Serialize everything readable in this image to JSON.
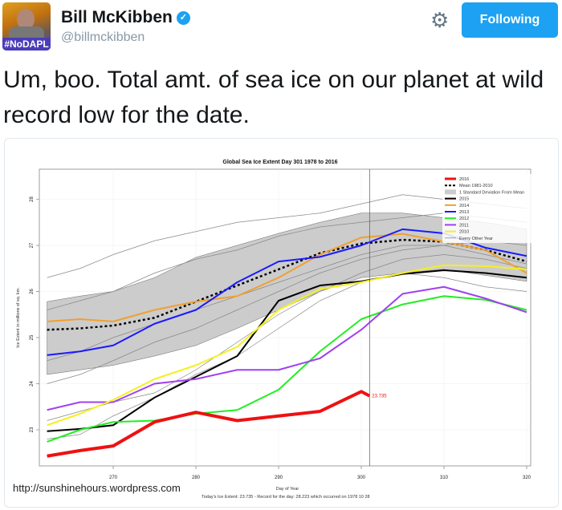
{
  "header": {
    "name": "Bill McKibben",
    "handle": "@billmckibben",
    "avatar_tag": "#NoDAPL",
    "verified_icon": "check",
    "follow_label": "Following",
    "accent": "#1da1f2"
  },
  "tweet": {
    "text": "Um, boo. Total amt. of sea ice on our planet at wild record low for the date."
  },
  "card": {
    "source_url": "http://sunshinehours.wordpress.com"
  },
  "chart_data": {
    "type": "line",
    "title": "Global Sea Ice Extent Day 301 1978 to 2016",
    "xlabel": "Day of Year",
    "ylabel": "Ice Extent in millions of sq. km.",
    "note": "Today's Ice Extent: 23.735  - Record for the day: 28.223 which occurred on 1978 10 28",
    "xlim": [
      262,
      321
    ],
    "ylim": [
      22.2,
      28.6
    ],
    "xticks": [
      270,
      280,
      290,
      300,
      310,
      320
    ],
    "yticks": [
      23,
      24,
      25,
      26,
      27,
      28
    ],
    "grid": true,
    "marker_day": 301,
    "legend_position": "top-right",
    "x": [
      262,
      266,
      270,
      275,
      280,
      285,
      290,
      295,
      300,
      305,
      310,
      315,
      320
    ],
    "band": {
      "name": "1 Standard Deviation From Mean",
      "upper": [
        25.78,
        25.9,
        26.0,
        26.3,
        26.74,
        27.0,
        27.26,
        27.5,
        27.7,
        27.7,
        27.6,
        27.5,
        27.35
      ],
      "lower": [
        24.2,
        24.3,
        24.4,
        24.6,
        24.83,
        25.2,
        25.6,
        26.0,
        26.3,
        26.4,
        26.48,
        26.35,
        26.22
      ],
      "color": "#cccccc"
    },
    "other_years": {
      "name": "Every Other Year",
      "color": "#888888",
      "series": [
        [
          26.3,
          26.5,
          26.8,
          27.1,
          27.3,
          27.5,
          27.6,
          27.7,
          27.9,
          28.1,
          28.0,
          27.9,
          27.8
        ],
        [
          25.6,
          25.8,
          26.0,
          26.4,
          26.7,
          26.9,
          27.2,
          27.4,
          27.5,
          27.6,
          27.7,
          27.6,
          27.5
        ],
        [
          24.5,
          24.7,
          25.0,
          25.3,
          25.6,
          25.9,
          26.2,
          26.5,
          26.8,
          27.0,
          27.0,
          26.8,
          26.6
        ],
        [
          23.2,
          23.4,
          23.6,
          23.8,
          24.3,
          24.9,
          25.5,
          26.0,
          26.4,
          26.7,
          26.8,
          26.7,
          26.5
        ],
        [
          22.8,
          22.9,
          23.3,
          23.7,
          24.2,
          24.6,
          25.2,
          25.8,
          26.2,
          26.4,
          26.3,
          26.1,
          26.0
        ],
        [
          24.0,
          24.2,
          24.5,
          24.9,
          25.2,
          25.6,
          26.0,
          26.4,
          26.7,
          26.9,
          27.0,
          27.1,
          27.0
        ]
      ]
    },
    "series": [
      {
        "name": "Mean 1981-2010",
        "color": "#000000",
        "dashed": true,
        "values": [
          25.17,
          25.2,
          25.26,
          25.43,
          25.78,
          26.13,
          26.48,
          26.83,
          27.04,
          27.12,
          27.08,
          26.9,
          26.65
        ]
      },
      {
        "name": "2015",
        "color": "#000000",
        "values": [
          22.97,
          23.02,
          23.1,
          23.7,
          24.15,
          24.6,
          25.8,
          26.13,
          26.22,
          26.38,
          26.46,
          26.4,
          26.3
        ]
      },
      {
        "name": "2014",
        "color": "#f0a030",
        "values": [
          25.35,
          25.4,
          25.35,
          25.6,
          25.78,
          25.9,
          26.3,
          26.8,
          27.17,
          27.25,
          27.08,
          26.9,
          26.4
        ]
      },
      {
        "name": "2013",
        "color": "#1a1aff",
        "values": [
          24.62,
          24.7,
          24.83,
          25.3,
          25.6,
          26.2,
          26.65,
          26.75,
          27.0,
          27.35,
          27.26,
          26.95,
          26.77
        ]
      },
      {
        "name": "2012",
        "color": "#22ee22",
        "values": [
          22.74,
          23.0,
          23.17,
          23.2,
          23.35,
          23.43,
          23.87,
          24.7,
          25.4,
          25.72,
          25.9,
          25.82,
          25.6
        ]
      },
      {
        "name": "2011",
        "color": "#a040f0",
        "values": [
          23.43,
          23.6,
          23.6,
          24.0,
          24.1,
          24.3,
          24.3,
          24.55,
          25.17,
          25.95,
          26.1,
          25.85,
          25.55
        ]
      },
      {
        "name": "2010",
        "color": "#f5f020",
        "values": [
          23.1,
          23.35,
          23.65,
          24.1,
          24.4,
          24.8,
          25.6,
          26.05,
          26.2,
          26.4,
          26.57,
          26.55,
          26.48
        ]
      },
      {
        "name": "2016",
        "color": "#ee1111",
        "thick": true,
        "x": [
          262,
          266,
          270,
          275,
          280,
          285,
          290,
          295,
          300,
          301
        ],
        "values": [
          22.43,
          22.55,
          22.65,
          23.17,
          23.38,
          23.2,
          23.3,
          23.4,
          23.83,
          23.735
        ]
      }
    ],
    "legend_order": [
      "2016",
      "Mean 1981-2010",
      "1 Standard Deviation From Mean",
      "2015",
      "2014",
      "2013",
      "2012",
      "2011",
      "2010",
      "Every Other Year"
    ],
    "end_label": "23.735"
  }
}
